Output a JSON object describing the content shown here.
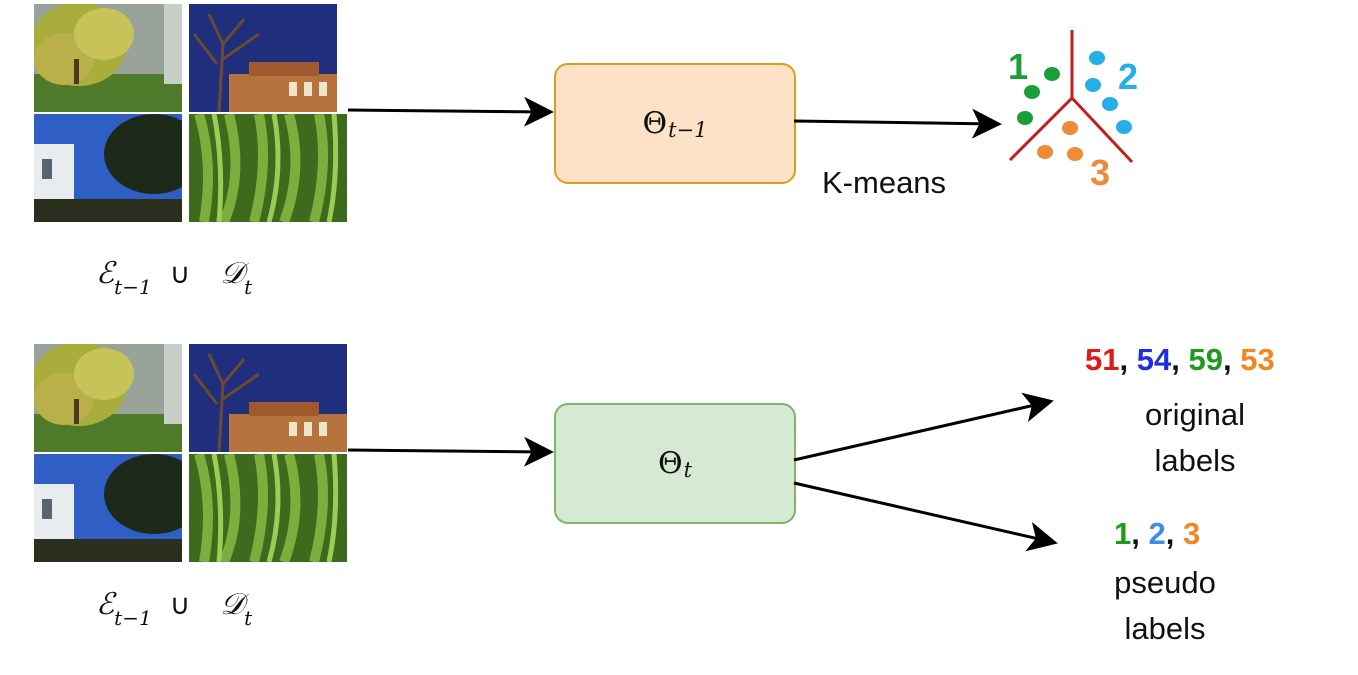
{
  "images": {
    "top_row": [
      "tree-autumn",
      "house-night",
      "house-day",
      "leaves-green"
    ],
    "bottom_row": [
      "tree-autumn",
      "house-night",
      "house-day",
      "leaves-green"
    ]
  },
  "set_label": {
    "e_symbol": "ℰ",
    "e_sub": "t−1",
    "union": "∪",
    "d_symbol": "𝒟",
    "d_sub": "t"
  },
  "model_prev": {
    "symbol": "Θ",
    "sub": "t−1"
  },
  "model_curr": {
    "symbol": "Θ",
    "sub": "t"
  },
  "kmeans_label": "K-means",
  "clusters": {
    "labels": [
      {
        "text": "1",
        "color": "#1a9e3a"
      },
      {
        "text": "2",
        "color": "#27aee6"
      },
      {
        "text": "3",
        "color": "#ef8a37"
      }
    ],
    "divider_color": "#c41e1e"
  },
  "original": {
    "numbers": [
      {
        "text": "51",
        "color": "#e01919"
      },
      {
        "text": "54",
        "color": "#1f2fe0"
      },
      {
        "text": "59",
        "color": "#1f9a1f"
      },
      {
        "text": "53",
        "color": "#f4861f"
      }
    ],
    "separator": ",",
    "caption_line1": "original",
    "caption_line2": "labels"
  },
  "pseudo": {
    "numbers": [
      {
        "text": "1",
        "color": "#1f9a1f"
      },
      {
        "text": "2",
        "color": "#3a8fe6"
      },
      {
        "text": "3",
        "color": "#f4861f"
      }
    ],
    "separator": ",",
    "caption_line1": "pseudo",
    "caption_line2": "labels"
  },
  "colors": {
    "prev_fill": "#fde2c7",
    "prev_border": "#d9a020",
    "curr_fill": "#d6e9d2",
    "curr_border": "#82b366",
    "arrow": "#000000"
  }
}
